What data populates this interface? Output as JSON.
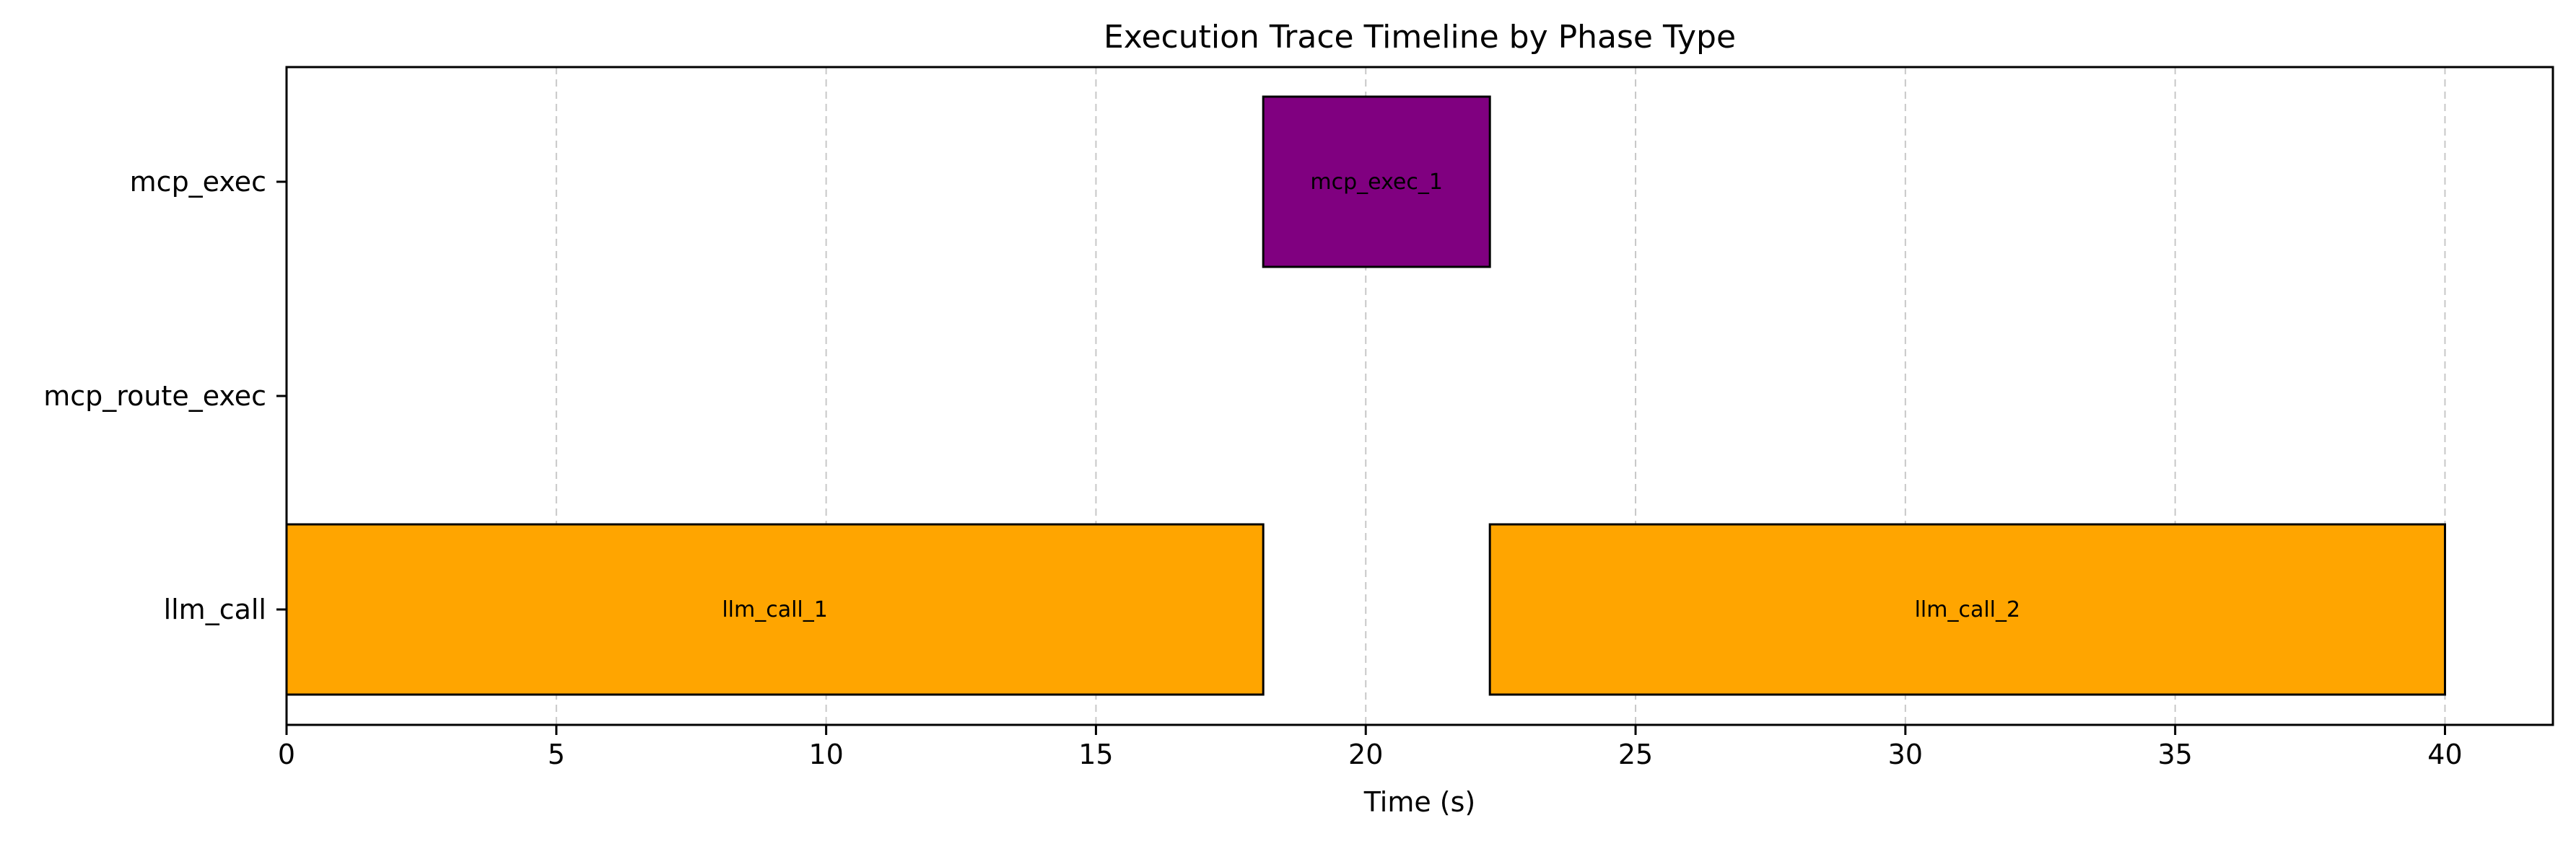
{
  "chart_data": {
    "type": "timeline",
    "title": "Execution Trace Timeline by Phase Type",
    "xlabel": "Time (s)",
    "ylabel": "",
    "xlim": [
      0,
      42
    ],
    "xticks": [
      0,
      5,
      10,
      15,
      20,
      25,
      30,
      35,
      40
    ],
    "categories": [
      "llm_call",
      "mcp_route_exec",
      "mcp_exec"
    ],
    "grid": {
      "x": true,
      "y": false,
      "style": "dashed"
    },
    "bars": [
      {
        "label": "llm_call_1",
        "category": "llm_call",
        "start": 0,
        "end": 18.1,
        "color": "#FFA500"
      },
      {
        "label": "mcp_exec_1",
        "category": "mcp_exec",
        "start": 18.1,
        "end": 22.3,
        "color": "#800080"
      },
      {
        "label": "llm_call_2",
        "category": "llm_call",
        "start": 22.3,
        "end": 40.0,
        "color": "#FFA500"
      }
    ]
  }
}
